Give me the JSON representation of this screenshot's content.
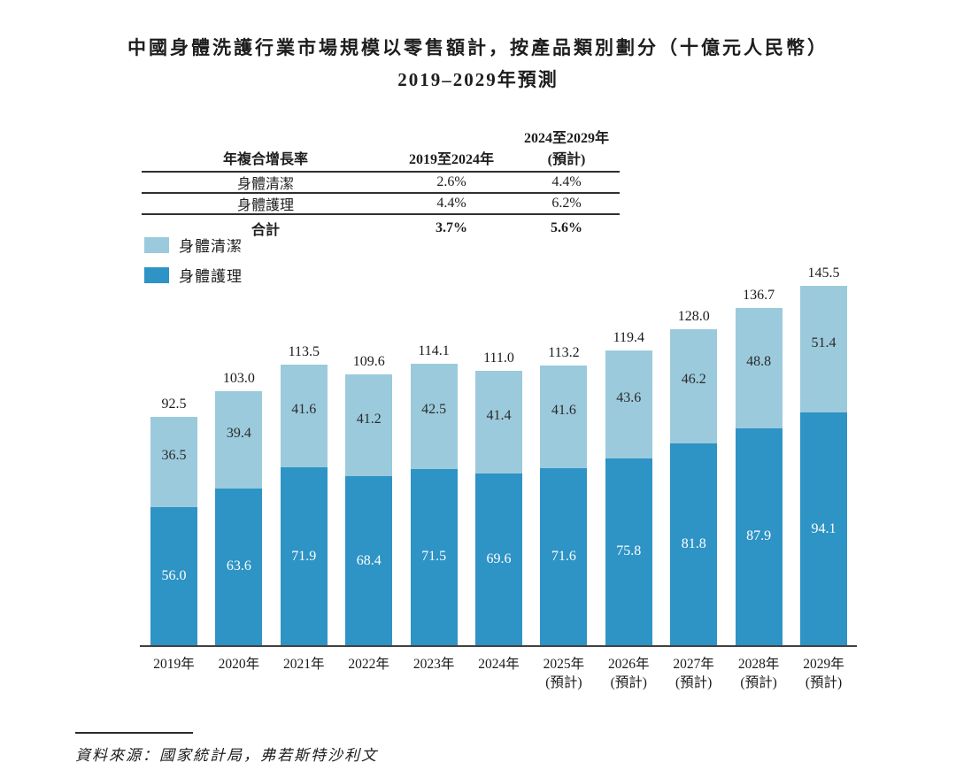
{
  "title": {
    "line1": "中國身體洗護行業市場規模以零售額計，按產品類別劃分（十億元人民幣）",
    "line2": "2019–2029年預測"
  },
  "cagr_table": {
    "col1_header": "年複合增長率",
    "col2_header": "2019至2024年",
    "col3_header_line1": "2024至2029年",
    "col3_header_line2": "(預計)",
    "rows": [
      [
        "身體清潔",
        "2.6%",
        "4.4%"
      ],
      [
        "身體護理",
        "4.4%",
        "6.2%"
      ]
    ],
    "total_row": [
      "合計",
      "3.7%",
      "5.6%"
    ]
  },
  "chart_data": {
    "type": "bar",
    "stacked": true,
    "title": "中國身體洗護行業市場規模以零售額計，按產品類別劃分（十億元人民幣）2019–2029年預測",
    "unit": "十億元人民幣",
    "categories": [
      "2019年",
      "2020年",
      "2021年",
      "2022年",
      "2023年",
      "2024年",
      "2025年",
      "2026年",
      "2027年",
      "2028年",
      "2029年"
    ],
    "forecast_note": "(預計)",
    "forecast_from_index": 6,
    "series": [
      {
        "name": "身體清潔",
        "color": "#9bcadc",
        "position": "top",
        "values": [
          36.5,
          39.4,
          41.6,
          41.2,
          42.5,
          41.4,
          41.6,
          43.6,
          46.2,
          48.8,
          51.4
        ]
      },
      {
        "name": "身體護理",
        "color": "#2e93c5",
        "position": "bottom",
        "values": [
          56.0,
          63.6,
          71.9,
          68.4,
          71.5,
          69.6,
          71.6,
          75.8,
          81.8,
          87.9,
          94.1
        ]
      }
    ],
    "totals": [
      92.5,
      103.0,
      113.5,
      109.6,
      114.1,
      111.0,
      113.2,
      119.4,
      128.0,
      136.7,
      145.5
    ],
    "legend_position": "top-left",
    "value_labels": "inside segments; totals above bars",
    "grid": false,
    "y_axis_visible": false
  },
  "source": "資料來源：國家統計局，弗若斯特沙利文"
}
